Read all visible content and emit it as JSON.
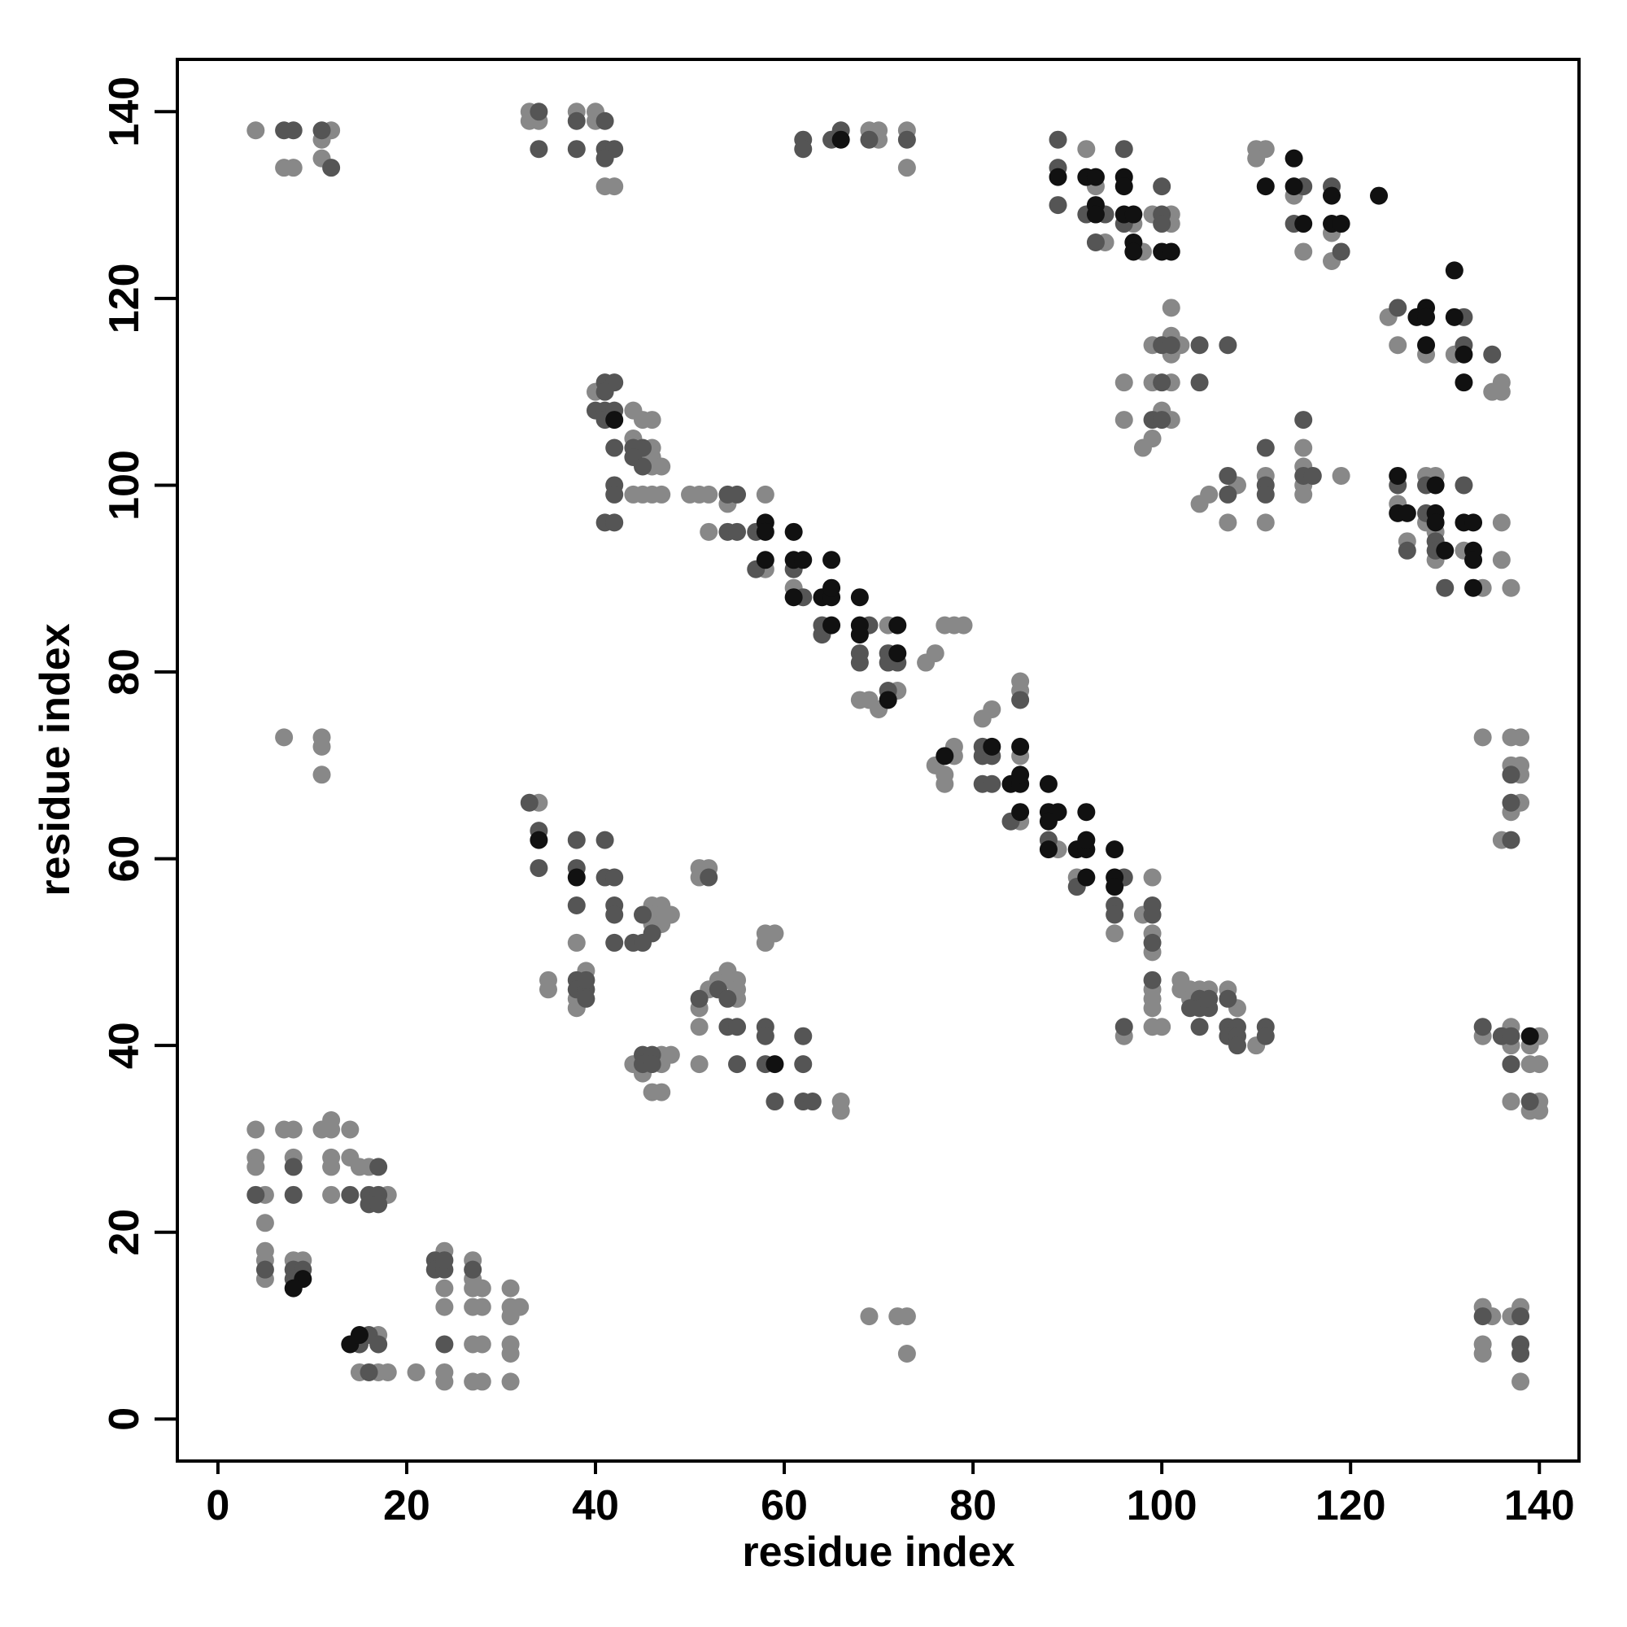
{
  "chart_data": {
    "type": "scatter",
    "x_label": "residue index",
    "y_label": "residue index",
    "xlim": [
      -4.3,
      144.2
    ],
    "ylim": [
      -4.5,
      145.6
    ],
    "xticks": [
      0,
      20,
      40,
      60,
      80,
      100,
      120,
      140
    ],
    "yticks": [
      0,
      20,
      40,
      60,
      80,
      100,
      120,
      140
    ],
    "series": [
      {
        "color": "#888888",
        "x": [
          4,
          7,
          8,
          12,
          11,
          11,
          33,
          33,
          34,
          38,
          40,
          40,
          41,
          42,
          69,
          70,
          70,
          73,
          73,
          92,
          93,
          94,
          97,
          98,
          99,
          101,
          101,
          110,
          111,
          110,
          114,
          115,
          118,
          118,
          124,
          125,
          128,
          131,
          135,
          136,
          136,
          99,
          102,
          101,
          101,
          101,
          96,
          99,
          101,
          96,
          101,
          100,
          98,
          99,
          104,
          105,
          108,
          107,
          111,
          111,
          115,
          115,
          115,
          115,
          119,
          125,
          126,
          128,
          129,
          128,
          129,
          129,
          132,
          134,
          136,
          136,
          137,
          40,
          44,
          45,
          44,
          45,
          46,
          46,
          46,
          46,
          47,
          44,
          45,
          46,
          47,
          50,
          51,
          52,
          54,
          52,
          58,
          58,
          61,
          71,
          68,
          69,
          70,
          72,
          75,
          76,
          77,
          78,
          79,
          76,
          77,
          77,
          78,
          78,
          81,
          82,
          85,
          85,
          85,
          85,
          89,
          91,
          95,
          98,
          99,
          99,
          99,
          99,
          99,
          99,
          99,
          100,
          96,
          102,
          103,
          102,
          103,
          104,
          105,
          107,
          108,
          110,
          34,
          38,
          46,
          47,
          46,
          47,
          48,
          46,
          47,
          35,
          35,
          39,
          38,
          38,
          51,
          52,
          51,
          58,
          59,
          58,
          51,
          52,
          53,
          54,
          54,
          55,
          55,
          55,
          51,
          51,
          66,
          66,
          44,
          47,
          47,
          48,
          45,
          46,
          47,
          7,
          11,
          11,
          11,
          69,
          72,
          73,
          73,
          134,
          137,
          138,
          137,
          138,
          138,
          138,
          137,
          136,
          134,
          137,
          137,
          140,
          139,
          140,
          137,
          140,
          139,
          140,
          139,
          134,
          135,
          137,
          138,
          134,
          134,
          138,
          4,
          7,
          8,
          4,
          4,
          8,
          5,
          11,
          12,
          12,
          14,
          12,
          12,
          14,
          12,
          15,
          16,
          18,
          5,
          5,
          5,
          5,
          8,
          9,
          17,
          15,
          17,
          18,
          21,
          24,
          27,
          27,
          27,
          24,
          24,
          27,
          28,
          28,
          27,
          28,
          24,
          24,
          27,
          28,
          31,
          31,
          32,
          31,
          31,
          31,
          31
        ],
        "y": [
          138,
          134,
          134,
          138,
          137,
          135,
          140,
          139,
          139,
          140,
          140,
          139,
          132,
          132,
          138,
          138,
          137,
          138,
          134,
          136,
          132,
          126,
          128,
          125,
          129,
          129,
          128,
          136,
          136,
          135,
          131,
          125,
          127,
          124,
          118,
          115,
          114,
          114,
          110,
          111,
          110,
          115,
          115,
          119,
          116,
          114,
          111,
          111,
          111,
          107,
          107,
          108,
          104,
          105,
          98,
          99,
          100,
          96,
          101,
          96,
          104,
          102,
          100,
          99,
          101,
          98,
          94,
          101,
          101,
          96,
          95,
          92,
          93,
          89,
          96,
          92,
          89,
          110,
          108,
          107,
          105,
          103,
          107,
          104,
          103,
          102,
          102,
          99,
          99,
          99,
          99,
          99,
          99,
          99,
          98,
          95,
          99,
          91,
          89,
          85,
          77,
          77,
          76,
          78,
          81,
          82,
          85,
          85,
          85,
          70,
          69,
          68,
          72,
          71,
          75,
          76,
          71,
          78,
          79,
          64,
          61,
          58,
          52,
          54,
          52,
          50,
          58,
          46,
          45,
          44,
          42,
          42,
          41,
          47,
          46,
          46,
          45,
          46,
          46,
          46,
          44,
          40,
          66,
          51,
          55,
          55,
          54,
          54,
          54,
          53,
          53,
          47,
          46,
          48,
          45,
          44,
          59,
          59,
          58,
          52,
          52,
          51,
          44,
          46,
          47,
          48,
          47,
          47,
          46,
          45,
          42,
          38,
          34,
          33,
          38,
          39,
          38,
          39,
          37,
          35,
          35,
          73,
          73,
          72,
          69,
          11,
          11,
          11,
          7,
          73,
          73,
          73,
          70,
          70,
          69,
          66,
          65,
          62,
          41,
          42,
          40,
          41,
          38,
          38,
          34,
          34,
          33,
          33,
          40,
          12,
          11,
          11,
          12,
          8,
          7,
          4,
          31,
          31,
          31,
          28,
          27,
          28,
          24,
          31,
          32,
          31,
          31,
          28,
          27,
          28,
          24,
          27,
          27,
          24,
          21,
          18,
          17,
          15,
          17,
          17,
          9,
          5,
          5,
          5,
          5,
          18,
          17,
          15,
          14,
          14,
          12,
          12,
          12,
          14,
          8,
          8,
          5,
          4,
          4,
          4,
          14,
          12,
          12,
          11,
          8,
          7,
          4
        ]
      },
      {
        "color": "#555555",
        "x": [
          7,
          8,
          11,
          12,
          34,
          34,
          38,
          41,
          38,
          41,
          42,
          41,
          62,
          62,
          65,
          66,
          69,
          73,
          89,
          89,
          89,
          92,
          94,
          93,
          96,
          96,
          100,
          100,
          100,
          115,
          114,
          118,
          119,
          125,
          132,
          132,
          135,
          100,
          101,
          100,
          104,
          104,
          107,
          99,
          100,
          107,
          107,
          111,
          111,
          111,
          115,
          115,
          116,
          125,
          126,
          128,
          128,
          129,
          129,
          132,
          130,
          41,
          42,
          41,
          40,
          41,
          42,
          41,
          42,
          44,
          45,
          44,
          45,
          42,
          42,
          41,
          42,
          54,
          55,
          54,
          55,
          57,
          57,
          61,
          62,
          64,
          64,
          69,
          68,
          68,
          71,
          71,
          72,
          71,
          81,
          81,
          82,
          81,
          82,
          85,
          84,
          88,
          91,
          96,
          95,
          95,
          99,
          99,
          99,
          99,
          96,
          104,
          103,
          104,
          105,
          105,
          104,
          107,
          107,
          108,
          107,
          108,
          108,
          111,
          111,
          33,
          34,
          34,
          38,
          41,
          38,
          41,
          42,
          38,
          42,
          42,
          42,
          44,
          45,
          45,
          46,
          38,
          38,
          39,
          39,
          39,
          52,
          51,
          53,
          54,
          54,
          55,
          58,
          58,
          62,
          55,
          58,
          62,
          59,
          62,
          63,
          45,
          45,
          46,
          46,
          137,
          137,
          137,
          134,
          136,
          137,
          137,
          139,
          134,
          138,
          138,
          138,
          8,
          4,
          8,
          14,
          17,
          16,
          17,
          16,
          17,
          5,
          8,
          9,
          8,
          16,
          15,
          17,
          16,
          23,
          23,
          24,
          24,
          27,
          24
        ],
        "y": [
          138,
          138,
          138,
          134,
          140,
          136,
          139,
          139,
          136,
          136,
          136,
          135,
          137,
          136,
          137,
          138,
          137,
          137,
          137,
          134,
          130,
          129,
          129,
          126,
          136,
          128,
          132,
          129,
          128,
          132,
          128,
          132,
          125,
          119,
          118,
          115,
          114,
          115,
          115,
          111,
          111,
          115,
          115,
          107,
          107,
          101,
          99,
          104,
          100,
          99,
          107,
          101,
          101,
          100,
          93,
          100,
          97,
          94,
          93,
          100,
          89,
          111,
          111,
          110,
          108,
          108,
          108,
          107,
          104,
          104,
          104,
          103,
          102,
          100,
          99,
          96,
          96,
          99,
          99,
          95,
          95,
          95,
          91,
          91,
          88,
          85,
          84,
          85,
          82,
          81,
          82,
          81,
          81,
          78,
          72,
          71,
          71,
          68,
          68,
          77,
          64,
          62,
          57,
          58,
          55,
          54,
          54,
          55,
          51,
          47,
          42,
          45,
          44,
          44,
          44,
          45,
          42,
          45,
          42,
          42,
          41,
          41,
          40,
          42,
          41,
          66,
          63,
          59,
          62,
          62,
          59,
          58,
          58,
          55,
          55,
          54,
          51,
          51,
          51,
          54,
          52,
          47,
          46,
          46,
          47,
          45,
          58,
          45,
          46,
          45,
          42,
          42,
          42,
          41,
          41,
          38,
          38,
          38,
          34,
          34,
          34,
          39,
          38,
          39,
          38,
          69,
          66,
          62,
          42,
          41,
          41,
          38,
          34,
          11,
          11,
          8,
          7,
          27,
          24,
          24,
          24,
          27,
          24,
          24,
          23,
          23,
          16,
          16,
          16,
          15,
          9,
          8,
          8,
          5,
          17,
          16,
          16,
          17,
          16,
          8
        ]
      },
      {
        "color": "#111111",
        "x": [
          66,
          89,
          92,
          93,
          93,
          93,
          96,
          96,
          96,
          97,
          97,
          97,
          100,
          101,
          111,
          114,
          114,
          115,
          118,
          118,
          119,
          123,
          127,
          128,
          128,
          128,
          131,
          131,
          132,
          132,
          125,
          125,
          126,
          129,
          129,
          129,
          130,
          132,
          133,
          133,
          133,
          133,
          42,
          58,
          58,
          58,
          61,
          61,
          62,
          61,
          65,
          64,
          65,
          65,
          65,
          68,
          68,
          68,
          72,
          72,
          71,
          77,
          82,
          84,
          85,
          85,
          85,
          85,
          88,
          88,
          89,
          88,
          88,
          92,
          91,
          92,
          92,
          92,
          95,
          95,
          95,
          34,
          38,
          59,
          139,
          9,
          8,
          14,
          15
        ],
        "y": [
          137,
          133,
          133,
          133,
          130,
          129,
          133,
          132,
          129,
          129,
          126,
          125,
          125,
          125,
          132,
          135,
          132,
          128,
          131,
          128,
          128,
          131,
          118,
          119,
          118,
          115,
          123,
          118,
          114,
          111,
          101,
          97,
          97,
          100,
          97,
          96,
          93,
          96,
          96,
          93,
          92,
          89,
          107,
          96,
          95,
          92,
          95,
          92,
          92,
          88,
          92,
          88,
          88,
          89,
          85,
          88,
          85,
          84,
          85,
          82,
          77,
          71,
          72,
          68,
          68,
          69,
          72,
          65,
          68,
          65,
          65,
          64,
          61,
          65,
          61,
          61,
          62,
          58,
          61,
          58,
          57,
          62,
          58,
          38,
          41,
          15,
          14,
          8,
          9
        ]
      }
    ]
  }
}
